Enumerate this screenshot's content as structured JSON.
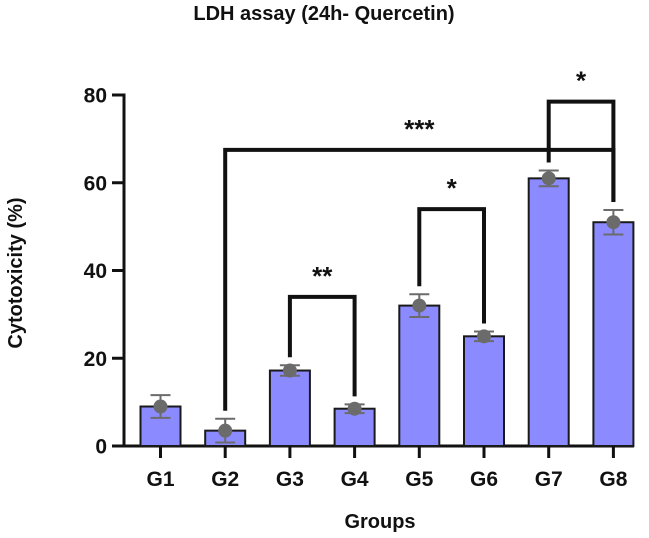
{
  "chart_data": {
    "type": "bar",
    "title": "LDH assay (24h- Quercetin)",
    "xlabel": "Groups",
    "ylabel": "Cytotoxicity (%)",
    "ylim": [
      0,
      80
    ],
    "yticks": [
      0,
      20,
      40,
      60,
      80
    ],
    "categories": [
      "G1",
      "G2",
      "G3",
      "G4",
      "G5",
      "G6",
      "G7",
      "G8"
    ],
    "values": [
      9,
      3.5,
      17.2,
      8.5,
      32,
      25,
      61,
      51
    ],
    "errors": [
      2.6,
      2.7,
      1.2,
      1.0,
      2.6,
      1.1,
      1.8,
      2.8
    ],
    "significance": [
      {
        "from": "G3",
        "to": "G4",
        "label": "**",
        "level": 34
      },
      {
        "from": "G5",
        "to": "G6",
        "label": "*",
        "level": 54
      },
      {
        "from": "G2",
        "to": "G8",
        "label": "***",
        "level": 67.5
      },
      {
        "from": "G7",
        "to": "G8",
        "label": "*",
        "level": 78.5
      }
    ],
    "colors": {
      "bar_fill": "#8b8bff",
      "bar_stroke": "#1a1a1a",
      "marker": "#6b6b6b",
      "error": "#6b6b6b",
      "axis": "#111111"
    }
  }
}
